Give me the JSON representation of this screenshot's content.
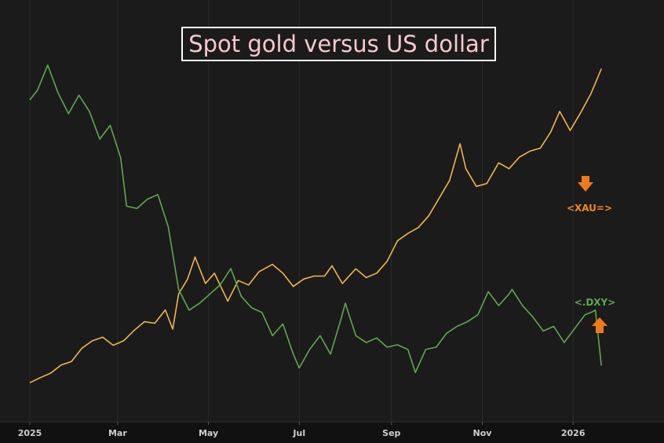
{
  "chart_data": {
    "type": "line",
    "title": "Spot gold versus US dollar",
    "xlabel": "",
    "ylabel": "",
    "x_tick_labels": [
      "2025",
      "Mar",
      "May",
      "Jul",
      "Sep",
      "Nov",
      "2026"
    ],
    "x_domain": [
      "2025-01-01",
      "2026-01-22"
    ],
    "y_axis_visible": false,
    "grid": "vertical",
    "legend": "inline-labels",
    "series": [
      {
        "name": "<XAU=>",
        "color": "#f0b64a",
        "label_color": "#f08a1c",
        "arrow": "down",
        "arrow_color": "#f07a1a",
        "scale": [
          2600,
          4800
        ],
        "points": [
          [
            "2025-01-01",
            2625
          ],
          [
            "2025-01-08",
            2660
          ],
          [
            "2025-01-15",
            2690
          ],
          [
            "2025-01-22",
            2745
          ],
          [
            "2025-01-29",
            2770
          ],
          [
            "2025-02-05",
            2860
          ],
          [
            "2025-02-12",
            2910
          ],
          [
            "2025-02-19",
            2935
          ],
          [
            "2025-02-26",
            2880
          ],
          [
            "2025-03-05",
            2910
          ],
          [
            "2025-03-12",
            2980
          ],
          [
            "2025-03-19",
            3040
          ],
          [
            "2025-03-26",
            3030
          ],
          [
            "2025-04-02",
            3120
          ],
          [
            "2025-04-07",
            2990
          ],
          [
            "2025-04-11",
            3230
          ],
          [
            "2025-04-17",
            3330
          ],
          [
            "2025-04-22",
            3480
          ],
          [
            "2025-04-29",
            3300
          ],
          [
            "2025-05-05",
            3370
          ],
          [
            "2025-05-14",
            3180
          ],
          [
            "2025-05-21",
            3320
          ],
          [
            "2025-05-28",
            3290
          ],
          [
            "2025-06-04",
            3380
          ],
          [
            "2025-06-13",
            3430
          ],
          [
            "2025-06-20",
            3370
          ],
          [
            "2025-06-27",
            3280
          ],
          [
            "2025-07-04",
            3330
          ],
          [
            "2025-07-11",
            3350
          ],
          [
            "2025-07-18",
            3350
          ],
          [
            "2025-07-23",
            3420
          ],
          [
            "2025-07-30",
            3300
          ],
          [
            "2025-08-08",
            3400
          ],
          [
            "2025-08-15",
            3340
          ],
          [
            "2025-08-22",
            3370
          ],
          [
            "2025-08-29",
            3450
          ],
          [
            "2025-09-05",
            3590
          ],
          [
            "2025-09-12",
            3640
          ],
          [
            "2025-09-19",
            3680
          ],
          [
            "2025-09-26",
            3760
          ],
          [
            "2025-10-03",
            3880
          ],
          [
            "2025-10-10",
            4000
          ],
          [
            "2025-10-17",
            4250
          ],
          [
            "2025-10-21",
            4080
          ],
          [
            "2025-10-28",
            3960
          ],
          [
            "2025-11-04",
            3980
          ],
          [
            "2025-11-12",
            4120
          ],
          [
            "2025-11-19",
            4080
          ],
          [
            "2025-11-26",
            4160
          ],
          [
            "2025-12-03",
            4200
          ],
          [
            "2025-12-10",
            4220
          ],
          [
            "2025-12-17",
            4330
          ],
          [
            "2025-12-23",
            4470
          ],
          [
            "2025-12-30",
            4340
          ],
          [
            "2026-01-06",
            4460
          ],
          [
            "2026-01-13",
            4590
          ],
          [
            "2026-01-20",
            4760
          ]
        ]
      },
      {
        "name": "<.DXY>",
        "color": "#5fa84e",
        "label_color": "#5fa84e",
        "arrow": "up",
        "arrow_color": "#f07a1a",
        "scale": [
          96,
          110
        ],
        "points": [
          [
            "2025-01-01",
            108.4
          ],
          [
            "2025-01-06",
            108.8
          ],
          [
            "2025-01-13",
            109.9
          ],
          [
            "2025-01-20",
            108.7
          ],
          [
            "2025-01-27",
            107.8
          ],
          [
            "2025-02-03",
            108.6
          ],
          [
            "2025-02-10",
            107.9
          ],
          [
            "2025-02-17",
            106.7
          ],
          [
            "2025-02-24",
            107.3
          ],
          [
            "2025-03-03",
            105.9
          ],
          [
            "2025-03-07",
            103.8
          ],
          [
            "2025-03-14",
            103.7
          ],
          [
            "2025-03-21",
            104.1
          ],
          [
            "2025-03-28",
            104.3
          ],
          [
            "2025-04-04",
            102.9
          ],
          [
            "2025-04-11",
            100.2
          ],
          [
            "2025-04-18",
            99.3
          ],
          [
            "2025-04-25",
            99.6
          ],
          [
            "2025-05-02",
            100.0
          ],
          [
            "2025-05-09",
            100.4
          ],
          [
            "2025-05-16",
            101.1
          ],
          [
            "2025-05-23",
            99.9
          ],
          [
            "2025-05-30",
            99.4
          ],
          [
            "2025-06-06",
            99.2
          ],
          [
            "2025-06-13",
            98.2
          ],
          [
            "2025-06-20",
            98.7
          ],
          [
            "2025-06-27",
            97.4
          ],
          [
            "2025-07-01",
            96.8
          ],
          [
            "2025-07-08",
            97.6
          ],
          [
            "2025-07-15",
            98.2
          ],
          [
            "2025-07-22",
            97.4
          ],
          [
            "2025-07-29",
            98.9
          ],
          [
            "2025-08-01",
            99.6
          ],
          [
            "2025-08-08",
            98.2
          ],
          [
            "2025-08-15",
            97.9
          ],
          [
            "2025-08-22",
            98.1
          ],
          [
            "2025-08-29",
            97.7
          ],
          [
            "2025-09-05",
            97.8
          ],
          [
            "2025-09-12",
            97.6
          ],
          [
            "2025-09-17",
            96.6
          ],
          [
            "2025-09-24",
            97.6
          ],
          [
            "2025-10-01",
            97.7
          ],
          [
            "2025-10-08",
            98.3
          ],
          [
            "2025-10-15",
            98.6
          ],
          [
            "2025-10-22",
            98.8
          ],
          [
            "2025-10-29",
            99.1
          ],
          [
            "2025-11-05",
            100.1
          ],
          [
            "2025-11-12",
            99.5
          ],
          [
            "2025-11-19",
            100.0
          ],
          [
            "2025-11-21",
            100.2
          ],
          [
            "2025-11-28",
            99.5
          ],
          [
            "2025-12-05",
            99.0
          ],
          [
            "2025-12-12",
            98.4
          ],
          [
            "2025-12-19",
            98.6
          ],
          [
            "2025-12-26",
            97.9
          ],
          [
            "2026-01-02",
            98.5
          ],
          [
            "2026-01-09",
            99.1
          ],
          [
            "2026-01-13",
            99.2
          ],
          [
            "2026-01-16",
            99.3
          ],
          [
            "2026-01-20",
            96.9
          ]
        ]
      }
    ]
  }
}
